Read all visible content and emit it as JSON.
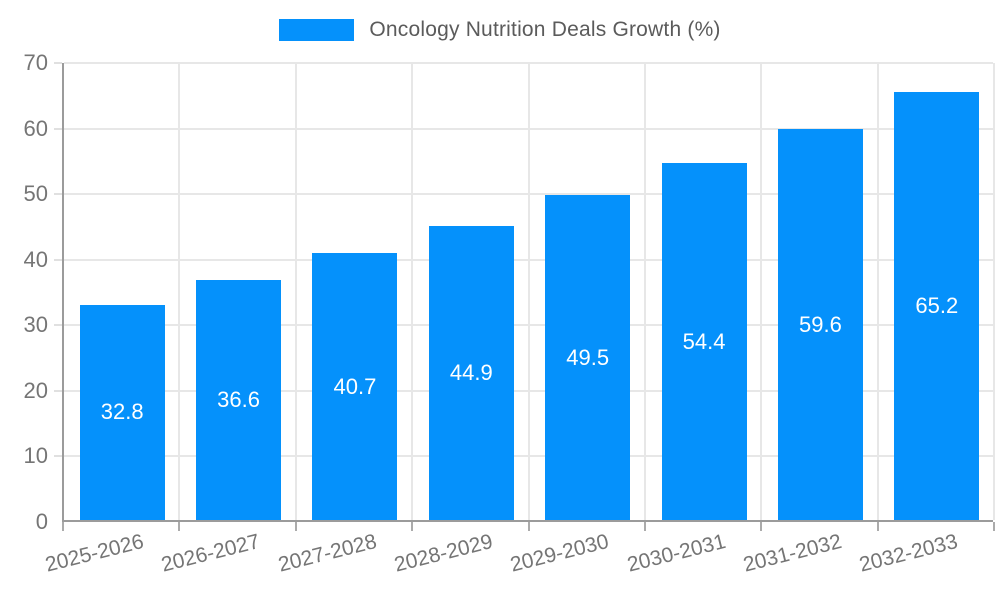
{
  "chart_data": {
    "type": "bar",
    "title": "Oncology Nutrition Deals Growth (%)",
    "categories": [
      "2025-2026",
      "2026-2027",
      "2027-2028",
      "2028-2029",
      "2029-2030",
      "2030-2031",
      "2031-2032",
      "2032-2033"
    ],
    "values": [
      32.8,
      36.6,
      40.7,
      44.9,
      49.5,
      54.4,
      59.6,
      65.2
    ],
    "value_labels": [
      "32.8",
      "36.6",
      "40.7",
      "44.9",
      "49.5",
      "54.4",
      "59.6",
      "65.2"
    ],
    "xlabel": "",
    "ylabel": "",
    "ylim": [
      0,
      70
    ],
    "yticks": [
      0,
      10,
      20,
      30,
      40,
      50,
      60,
      70
    ],
    "grid": true,
    "legend_position": "top",
    "bar_color": "#0591fb",
    "value_label_color": "#ffffff",
    "grid_color": "#e7e7e7",
    "axis_color": "#9b9b9b",
    "tick_text_color": "#757575",
    "legend_text_color": "#5b5b5b"
  }
}
